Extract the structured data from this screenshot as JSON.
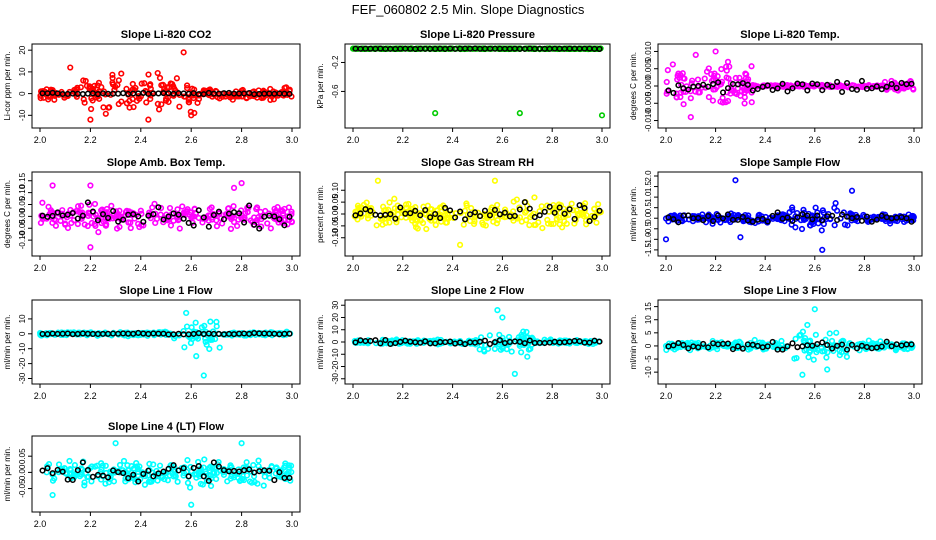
{
  "title": "FEF_060802  2.5 Min. Slope Diagnostics",
  "colors": {
    "axis": "#000000",
    "overlay": "#000000"
  },
  "chart_data": [
    {
      "type": "scatter",
      "title": "Slope Li-820 CO2",
      "xlabel": "",
      "ylabel": "Li-cor ppm per min.",
      "xlim": [
        2.0,
        3.0
      ],
      "ylim": [
        -14,
        21
      ],
      "xticks": [
        2.0,
        2.2,
        2.4,
        2.6,
        2.8,
        3.0
      ],
      "yticks": [
        -10,
        0,
        10,
        20
      ],
      "yticklabels": [
        "-10",
        "0",
        "10",
        "20"
      ],
      "color": "#ff0000",
      "spread": 2.5,
      "burst": {
        "from": 2.15,
        "to": 2.65,
        "amp": 8
      },
      "outliers": [
        [
          2.12,
          12
        ],
        [
          2.57,
          19
        ],
        [
          2.2,
          -12
        ],
        [
          2.6,
          -10
        ],
        [
          2.43,
          -12
        ]
      ],
      "overlay_y": [
        0,
        0.3
      ]
    },
    {
      "type": "scatter",
      "title": "Slope Li-820 Pressure",
      "xlabel": "",
      "ylabel": "kPa per min.",
      "xlim": [
        2.0,
        3.0
      ],
      "ylim": [
        -1.05,
        0.0
      ],
      "xticks": [
        2.0,
        2.2,
        2.4,
        2.6,
        2.8,
        3.0
      ],
      "yticks": [
        -0.2,
        -0.6
      ],
      "yticklabels": [
        "-0.2",
        "-0.6"
      ],
      "color": "#00cc00",
      "base": -0.01,
      "spread": 0.004,
      "burst": null,
      "outliers": [
        [
          2.33,
          -0.9
        ],
        [
          2.67,
          -0.9
        ],
        [
          3.0,
          -0.93
        ]
      ],
      "overlay_y": [
        -0.01,
        0.003
      ]
    },
    {
      "type": "scatter",
      "title": "Slope Li-820 Temp.",
      "xlabel": "",
      "ylabel": "degrees C per min.",
      "xlim": [
        2.0,
        3.0
      ],
      "ylim": [
        -0.011,
        0.011
      ],
      "xticks": [
        2.0,
        2.2,
        2.4,
        2.6,
        2.8,
        3.0
      ],
      "yticks": [
        -0.01,
        -0.005,
        0.0,
        0.005,
        0.01
      ],
      "yticklabels": [
        "-0.010",
        "-0.005",
        "0.000",
        "0.005",
        "0.010"
      ],
      "color": "#ff00ff",
      "spread": 0.0003,
      "burst": {
        "from": 2.0,
        "to": 2.35,
        "amp": 0.005
      },
      "burst2": {
        "from": 2.88,
        "to": 3.0,
        "amp": 0.0015
      },
      "outliers": [
        [
          2.12,
          0.009
        ],
        [
          2.2,
          0.01
        ],
        [
          2.1,
          -0.009
        ],
        [
          2.25,
          0.007
        ]
      ],
      "overlay_y": [
        0,
        0.002
      ]
    },
    {
      "type": "scatter",
      "title": "Slope Amb. Box Temp.",
      "xlabel": "",
      "ylabel": "degrees C per min.",
      "xlim": [
        2.0,
        3.0
      ],
      "ylim": [
        -0.15,
        0.17
      ],
      "xticks": [
        2.0,
        2.2,
        2.4,
        2.6,
        2.8,
        3.0
      ],
      "yticks": [
        -0.1,
        -0.05,
        0.0,
        0.05,
        0.1,
        0.15
      ],
      "yticklabels": [
        "-0.10",
        "-0.05",
        "0.00",
        "0.05",
        "0.10",
        "0.15"
      ],
      "color": "#ff00ff",
      "spread": 0.05,
      "burst": null,
      "outliers": [
        [
          2.05,
          0.13
        ],
        [
          2.2,
          0.13
        ],
        [
          2.77,
          0.12
        ],
        [
          2.8,
          0.14
        ],
        [
          2.2,
          -0.13
        ]
      ],
      "overlay_y": [
        0.0,
        0.04
      ]
    },
    {
      "type": "scatter",
      "title": "Slope Gas Stream RH",
      "xlabel": "",
      "ylabel": "percent per min.",
      "xlim": [
        2.0,
        3.0
      ],
      "ylim": [
        -0.16,
        0.16
      ],
      "xticks": [
        2.0,
        2.2,
        2.4,
        2.6,
        2.8,
        3.0
      ],
      "yticks": [
        -0.1,
        -0.05,
        0.0,
        0.05,
        0.1
      ],
      "yticklabels": [
        "-0.10",
        "-0.05",
        "0.00",
        "0.05",
        "0.10"
      ],
      "color": "#ffff00",
      "spread": 0.05,
      "burst": null,
      "outliers": [
        [
          2.1,
          0.14
        ],
        [
          2.43,
          -0.13
        ],
        [
          2.57,
          0.14
        ]
      ],
      "overlay_y": [
        0.0,
        0.04
      ]
    },
    {
      "type": "scatter",
      "title": "Slope Sample Flow",
      "xlabel": "",
      "ylabel": "ml/min per min.",
      "xlim": [
        2.0,
        3.0
      ],
      "ylim": [
        -1.6,
        2.0
      ],
      "xticks": [
        2.0,
        2.2,
        2.4,
        2.6,
        2.8,
        3.0
      ],
      "yticks": [
        -1.5,
        -1.0,
        -0.5,
        0.0,
        0.5,
        1.0,
        1.5,
        2.0
      ],
      "yticklabels": [
        "-1.5",
        "-1.0",
        "-0.5",
        "0.0",
        "0.5",
        "1.0",
        "1.5",
        "2.0"
      ],
      "color": "#0000ff",
      "spread": 0.2,
      "burst": {
        "from": 2.5,
        "to": 2.75,
        "amp": 0.5
      },
      "outliers": [
        [
          2.28,
          1.8
        ],
        [
          2.3,
          -0.9
        ],
        [
          2.63,
          -1.5
        ],
        [
          2.75,
          1.3
        ],
        [
          2.0,
          -1.0
        ]
      ],
      "overlay_y": [
        0.0,
        0.25
      ]
    },
    {
      "type": "scatter",
      "title": "Slope Line 1 Flow",
      "xlabel": "",
      "ylabel": "ml/min per min.",
      "xlim": [
        2.0,
        3.0
      ],
      "ylim": [
        -31,
        20
      ],
      "xticks": [
        2.0,
        2.2,
        2.4,
        2.6,
        2.8,
        3.0
      ],
      "yticks": [
        -30,
        -20,
        -10,
        0,
        10
      ],
      "yticklabels": [
        "-30",
        "-20",
        "-10",
        "0",
        "10"
      ],
      "color": "#00ffff",
      "spread": 1.2,
      "burst": {
        "from": 2.52,
        "to": 2.72,
        "amp": 8
      },
      "outliers": [
        [
          2.58,
          14
        ],
        [
          2.65,
          -28
        ],
        [
          2.62,
          -15
        ],
        [
          2.7,
          8
        ]
      ],
      "overlay_y": [
        0.0,
        0.5
      ]
    },
    {
      "type": "scatter",
      "title": "Slope Line 2 Flow",
      "xlabel": "",
      "ylabel": "ml/min per min.",
      "xlim": [
        2.0,
        3.0
      ],
      "ylim": [
        -31,
        31
      ],
      "xticks": [
        2.0,
        2.2,
        2.4,
        2.6,
        2.8,
        3.0
      ],
      "yticks": [
        -30,
        -20,
        -10,
        0,
        10,
        20,
        30
      ],
      "yticklabels": [
        "-30",
        "-20",
        "-10",
        "0",
        "10",
        "20",
        "30"
      ],
      "color": "#00ffff",
      "spread": 1.8,
      "burst": {
        "from": 2.5,
        "to": 2.72,
        "amp": 8
      },
      "outliers": [
        [
          2.58,
          26
        ],
        [
          2.65,
          -26
        ],
        [
          2.6,
          20
        ],
        [
          2.7,
          -12
        ]
      ],
      "overlay_y": [
        0.0,
        2.0
      ]
    },
    {
      "type": "scatter",
      "title": "Slope Line 3 Flow",
      "xlabel": "",
      "ylabel": "ml/min per min.",
      "xlim": [
        2.0,
        3.0
      ],
      "ylim": [
        -13,
        16
      ],
      "xticks": [
        2.0,
        2.2,
        2.4,
        2.6,
        2.8,
        3.0
      ],
      "yticks": [
        -10,
        -5,
        0,
        5,
        10,
        15
      ],
      "yticklabels": [
        "-10",
        "-5",
        "0",
        "5",
        "10",
        "15"
      ],
      "color": "#00ffff",
      "spread": 1.5,
      "burst": {
        "from": 2.5,
        "to": 2.75,
        "amp": 5
      },
      "outliers": [
        [
          2.6,
          14
        ],
        [
          2.55,
          -11
        ],
        [
          2.65,
          -9
        ],
        [
          2.57,
          8
        ]
      ],
      "overlay_y": [
        0.0,
        1.5
      ]
    },
    {
      "type": "scatter",
      "title": "Slope Line 4 (LT) Flow",
      "xlabel": "",
      "ylabel": "ml/min per min.",
      "xlim": [
        2.0,
        3.0
      ],
      "ylim": [
        -0.11,
        0.1
      ],
      "xticks": [
        2.0,
        2.2,
        2.4,
        2.6,
        2.8,
        3.0
      ],
      "yticks": [
        -0.05,
        0.0,
        0.05
      ],
      "yticklabels": [
        "-0.05",
        "0.00",
        "0.05"
      ],
      "color": "#00ffff",
      "spread": 0.035,
      "burst": null,
      "outliers": [
        [
          2.3,
          0.09
        ],
        [
          2.8,
          0.09
        ],
        [
          2.6,
          -0.1
        ],
        [
          2.05,
          -0.07
        ]
      ],
      "overlay_y": [
        0.0,
        0.035
      ]
    }
  ]
}
